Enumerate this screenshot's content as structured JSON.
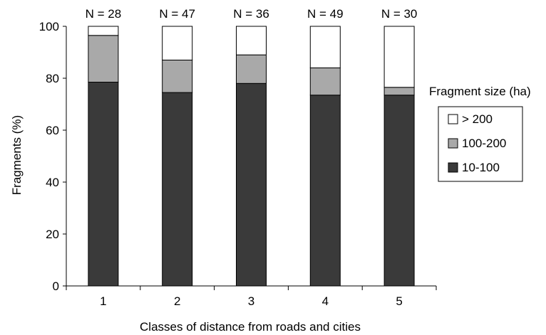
{
  "chart_data": {
    "type": "bar",
    "stacked": true,
    "categories": [
      "1",
      "2",
      "3",
      "4",
      "5"
    ],
    "counts": [
      "N = 28",
      "N = 47",
      "N = 36",
      "N = 49",
      "N = 30"
    ],
    "series": [
      {
        "name": "10-100",
        "values": [
          78.5,
          74.5,
          78.0,
          73.5,
          73.5
        ],
        "color": "#3a3a3a"
      },
      {
        "name": "100-200",
        "values": [
          18.0,
          12.5,
          11.0,
          10.5,
          3.0
        ],
        "color": "#a9a9a9"
      },
      {
        "name": "> 200",
        "values": [
          3.5,
          13.0,
          11.0,
          16.0,
          23.5
        ],
        "color": "#ffffff"
      }
    ],
    "xlabel": "Classes of distance from roads and cities",
    "ylabel": "Fragments (%)",
    "ylim": [
      0,
      100
    ],
    "yticks": [
      0,
      20,
      40,
      60,
      80,
      100
    ],
    "legend": {
      "title": "Fragment size (ha)",
      "order": [
        "> 200",
        "100-200",
        "10-100"
      ],
      "placement": "right"
    },
    "grid": false
  }
}
